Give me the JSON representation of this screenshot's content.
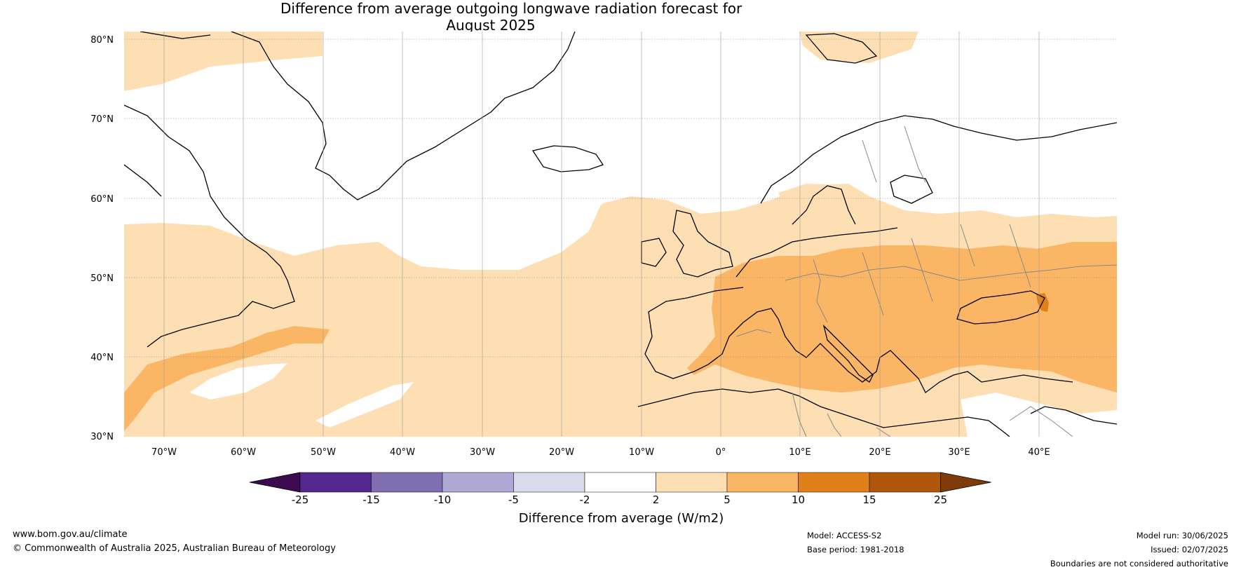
{
  "title": {
    "line1": "Difference from average outgoing longwave radiation forecast for",
    "line2": "August 2025"
  },
  "map": {
    "lat_labels": [
      "80°N",
      "70°N",
      "60°N",
      "50°N",
      "40°N",
      "30°N"
    ],
    "lon_labels": [
      "70°W",
      "60°W",
      "50°W",
      "40°W",
      "30°W",
      "20°W",
      "10°W",
      "0°",
      "10°E",
      "20°E",
      "30°E",
      "40°E"
    ]
  },
  "legend": {
    "title": "Difference from average (W/m2)",
    "ticks": [
      "-25",
      "-15",
      "-10",
      "-5",
      "-2",
      "2",
      "5",
      "10",
      "15",
      "25"
    ],
    "colors": [
      "#3b0a4f",
      "#54278f",
      "#7f6fb0",
      "#b0a8d4",
      "#dadaeb",
      "#ffffff",
      "#fddfb3",
      "#fbb665",
      "#e0801a",
      "#b0560a",
      "#7f3c0a"
    ]
  },
  "footer": {
    "website": "www.bom.gov.au/climate",
    "copyright": "© Commonwealth of Australia 2025, Australian Bureau of Meteorology",
    "model": "Model: ACCESS-S2",
    "base_period": "Base period: 1981-2018",
    "model_run": "Model run: 30/06/2025",
    "issued": "Issued: 02/07/2025",
    "boundaries": "Boundaries are not considered authoritative"
  }
}
